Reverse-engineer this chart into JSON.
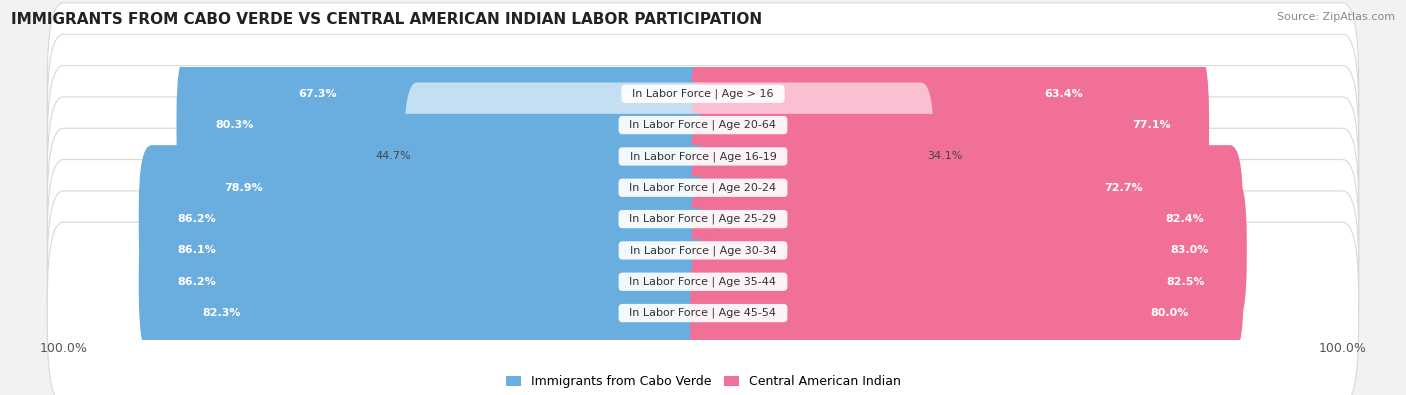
{
  "title": "IMMIGRANTS FROM CABO VERDE VS CENTRAL AMERICAN INDIAN LABOR PARTICIPATION",
  "source": "Source: ZipAtlas.com",
  "categories": [
    "In Labor Force | Age > 16",
    "In Labor Force | Age 20-64",
    "In Labor Force | Age 16-19",
    "In Labor Force | Age 20-24",
    "In Labor Force | Age 25-29",
    "In Labor Force | Age 30-34",
    "In Labor Force | Age 35-44",
    "In Labor Force | Age 45-54"
  ],
  "cabo_verde_values": [
    67.3,
    80.3,
    44.7,
    78.9,
    86.2,
    86.1,
    86.2,
    82.3
  ],
  "central_american_values": [
    63.4,
    77.1,
    34.1,
    72.7,
    82.4,
    83.0,
    82.5,
    80.0
  ],
  "cabo_verde_color": "#6aaee0",
  "cabo_verde_color_light": "#c5dff2",
  "central_american_color": "#f07098",
  "central_american_color_light": "#f8c0d0",
  "background_color": "#f2f2f2",
  "row_bg_color": "#ffffff",
  "row_outline_color": "#d8d8d8",
  "max_value": 100.0,
  "legend_label_cabo": "Immigrants from Cabo Verde",
  "legend_label_central": "Central American Indian",
  "title_fontsize": 11,
  "source_fontsize": 8,
  "label_fontsize": 8,
  "value_fontsize": 8
}
